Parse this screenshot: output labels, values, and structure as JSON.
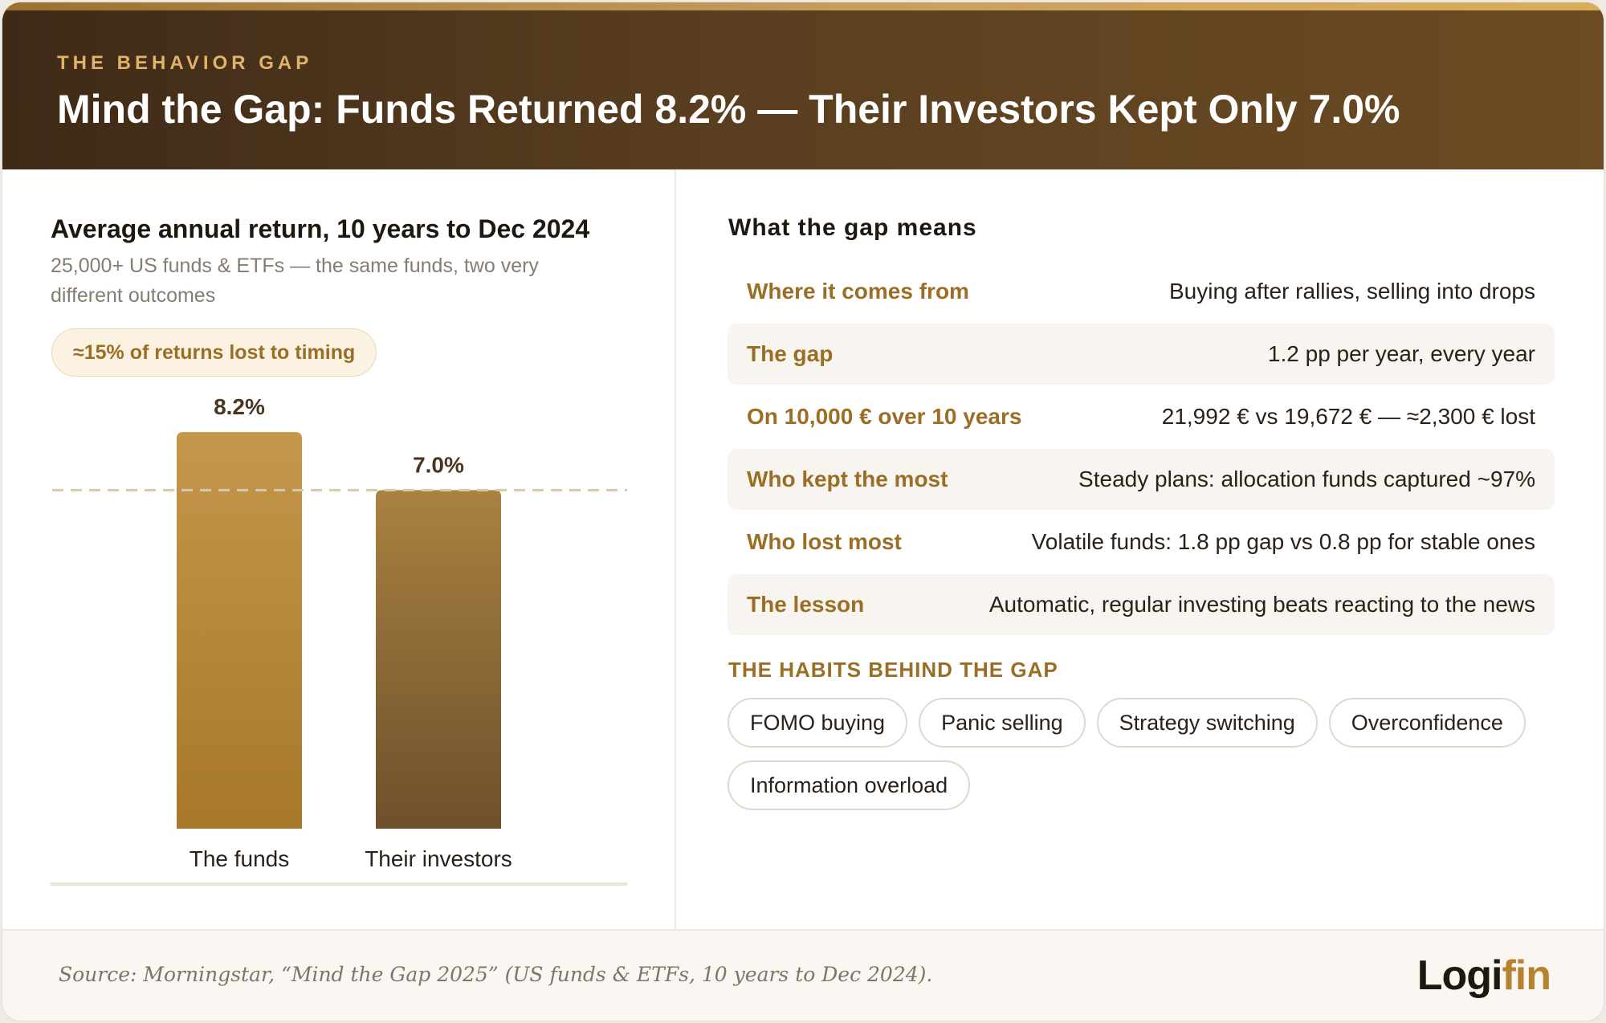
{
  "header": {
    "eyebrow": "THE BEHAVIOR GAP",
    "title": "Mind the Gap: Funds Returned 8.2% — Their Investors Kept Only 7.0%"
  },
  "left_panel": {
    "chart_title": "Average annual return, 10 years to Dec 2024",
    "chart_subtitle": "25,000+ US funds & ETFs — the same funds, two very different outcomes",
    "pill_label": "≈15% of returns lost to timing"
  },
  "chart_data": {
    "type": "bar",
    "title": "Average annual return, 10 years to Dec 2024",
    "categories": [
      "The funds",
      "Their investors"
    ],
    "values": [
      8.2,
      7.0
    ],
    "data_labels": [
      "8.2%",
      "7.0%"
    ],
    "reference_line": 7.0,
    "ylim": [
      0,
      8.5
    ],
    "grid": false,
    "colors": {
      "funds_top": "#c4974a",
      "funds_bottom": "#a7782a",
      "investors_top": "#a98240",
      "investors_bottom": "#6d502c",
      "reference_line": "#d8c8ae",
      "baseline": "#ebe4da",
      "label": "#4a3520"
    }
  },
  "right_panel": {
    "title": "What the gap means",
    "rows": [
      {
        "label": "Where it comes from",
        "value": "Buying after rallies, selling into drops"
      },
      {
        "label": "The gap",
        "value": "1.2 pp per year, every year"
      },
      {
        "label": "On 10,000 € over 10 years",
        "value": "21,992 € vs 19,672 € — ≈2,300 € lost"
      },
      {
        "label": "Who kept the most",
        "value": "Steady plans: allocation funds captured ~97%"
      },
      {
        "label": "Who lost most",
        "value": "Volatile funds: 1.8 pp gap vs 0.8 pp for stable ones"
      },
      {
        "label": "The lesson",
        "value": "Automatic, regular investing beats reacting to the news"
      }
    ],
    "habits_title": "THE HABITS BEHIND THE GAP",
    "habits": [
      "FOMO buying",
      "Panic selling",
      "Strategy switching",
      "Overconfidence",
      "Information overload"
    ]
  },
  "footer": {
    "source": "Source: Morningstar, “Mind the Gap 2025” (US funds & ETFs, 10 years to Dec 2024).",
    "logo_main": "Logi",
    "logo_accent": "fin"
  },
  "colors": {
    "header_bg": "#4e361c",
    "accent": "#9a6f25",
    "eyebrow": "#e0b36a"
  }
}
